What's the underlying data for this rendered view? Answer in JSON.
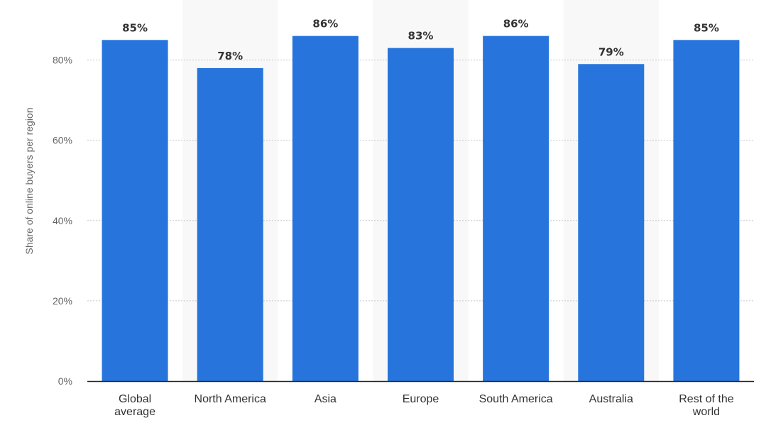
{
  "chart_data": {
    "type": "bar",
    "title": "",
    "xlabel": "",
    "ylabel": "Share of online buyers per region",
    "categories": [
      [
        "Global",
        "average"
      ],
      [
        "North America"
      ],
      [
        "Asia"
      ],
      [
        "Europe"
      ],
      [
        "South America"
      ],
      [
        "Australia"
      ],
      [
        "Rest of the",
        "world"
      ]
    ],
    "values": [
      85,
      78,
      86,
      83,
      86,
      79,
      85
    ],
    "value_labels": [
      "85%",
      "78%",
      "86%",
      "83%",
      "86%",
      "79%",
      "85%"
    ],
    "ylim": [
      0,
      90
    ],
    "yticks": [
      0,
      20,
      40,
      60,
      80
    ],
    "ytick_labels": [
      "0%",
      "20%",
      "40%",
      "60%",
      "80%"
    ],
    "grid": true,
    "alternating_band_background": true,
    "bar_color": "#2775dc",
    "band_color": "#f8f8f8",
    "grid_color": "#c8c8c8",
    "axis_color": "#222222"
  }
}
